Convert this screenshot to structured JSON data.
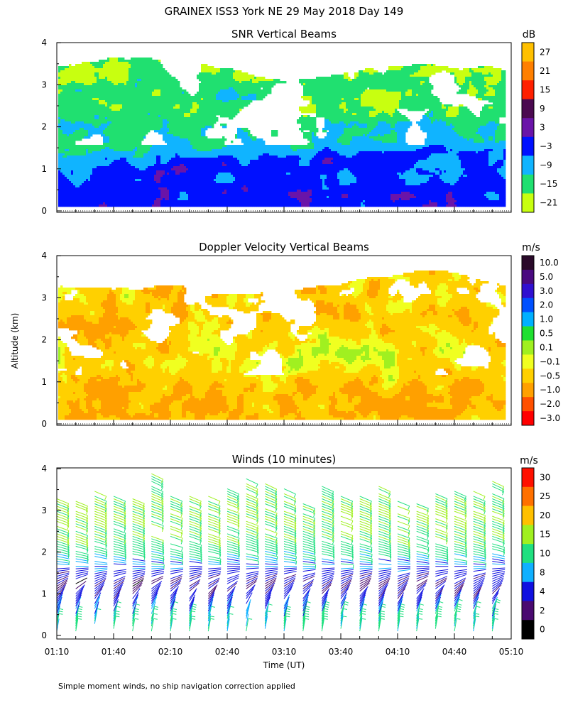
{
  "title": "GRAINEX ISS3 York NE  29 May 2018 Day 149",
  "ylabel": "Altitude (km)",
  "xlabel": "Time (UT)",
  "footnote": "Simple moment winds, no ship navigation correction applied",
  "x_ticks": [
    "01:10",
    "01:40",
    "02:10",
    "02:40",
    "03:10",
    "03:40",
    "04:10",
    "04:40",
    "05:10"
  ],
  "y_ticks": [
    "0",
    "1",
    "2",
    "3",
    "4"
  ],
  "chart_data": [
    {
      "type": "heatmap",
      "title": "SNR Vertical Beams",
      "unit": "dB",
      "x_range": [
        "01:10",
        "05:10"
      ],
      "ylim": [
        0,
        4
      ],
      "colorbar": {
        "labels": [
          "27",
          "21",
          "15",
          "9",
          "3",
          "−3",
          "−9",
          "−15",
          "−21"
        ],
        "colors": [
          "#ffc000",
          "#ff7f00",
          "#ff2000",
          "#4b0a50",
          "#6a14a8",
          "#0010ff",
          "#10b4ff",
          "#20e070",
          "#c8ff10"
        ]
      },
      "profile": [
        {
          "alt_km": 0.5,
          "snr_db": -3
        },
        {
          "alt_km": 1.0,
          "snr_db": -6
        },
        {
          "alt_km": 1.5,
          "snr_db": -12
        },
        {
          "alt_km": 2.0,
          "snr_db": -14
        },
        {
          "alt_km": 2.5,
          "snr_db": -17
        },
        {
          "alt_km": 3.0,
          "snr_db": -15
        },
        {
          "alt_km": 3.5,
          "snr_db": -19
        }
      ]
    },
    {
      "type": "heatmap",
      "title": "Doppler Velocity Vertical Beams",
      "unit": "m/s",
      "x_range": [
        "01:10",
        "05:10"
      ],
      "ylim": [
        0,
        4
      ],
      "colorbar": {
        "labels": [
          "10.0",
          "5.0",
          "3.0",
          "2.0",
          "1.0",
          "0.5",
          "0.1",
          "−0.1",
          "−0.5",
          "−1.0",
          "−2.0",
          "−3.0"
        ],
        "colors": [
          "#2a0a2a",
          "#4a0a80",
          "#3010d0",
          "#0050ff",
          "#00b0ff",
          "#20e030",
          "#a0f020",
          "#f0ff20",
          "#ffd000",
          "#ffa000",
          "#ff5000",
          "#ff0000"
        ]
      },
      "profile": [
        {
          "alt_km": 0.5,
          "velocity_ms": -0.7
        },
        {
          "alt_km": 1.0,
          "velocity_ms": -0.6
        },
        {
          "alt_km": 1.5,
          "velocity_ms": -0.3
        },
        {
          "alt_km": 2.0,
          "velocity_ms": -0.4
        },
        {
          "alt_km": 2.5,
          "velocity_ms": -0.6
        },
        {
          "alt_km": 3.0,
          "velocity_ms": -0.5
        },
        {
          "alt_km": 3.5,
          "velocity_ms": -0.6
        }
      ]
    },
    {
      "type": "scatter",
      "title": "Winds (10 minutes)",
      "unit": "m/s",
      "x_range": [
        "01:10",
        "05:10"
      ],
      "ylim": [
        0,
        4
      ],
      "colorbar": {
        "labels": [
          "30",
          "25",
          "20",
          "15",
          "10",
          "8",
          "4",
          "2",
          "0"
        ],
        "colors": [
          "#ff1000",
          "#ff7000",
          "#ffc000",
          "#a0f020",
          "#20e080",
          "#10b0ff",
          "#1010e0",
          "#4a0a70",
          "#000000"
        ]
      },
      "times": [
        "01:10",
        "01:20",
        "01:30",
        "01:40",
        "01:50",
        "02:00",
        "02:10",
        "02:20",
        "02:30",
        "02:40",
        "02:50",
        "03:00",
        "03:10",
        "03:20",
        "03:30",
        "03:40",
        "03:50",
        "04:00",
        "04:10",
        "04:20",
        "04:30",
        "04:40",
        "04:50",
        "05:00"
      ],
      "profile": [
        {
          "alt_km": 0.3,
          "speed_ms": 11,
          "dir_deg": 190
        },
        {
          "alt_km": 0.8,
          "speed_ms": 6,
          "dir_deg": 210
        },
        {
          "alt_km": 1.2,
          "speed_ms": 3,
          "dir_deg": 240
        },
        {
          "alt_km": 1.8,
          "speed_ms": 9,
          "dir_deg": 280
        },
        {
          "alt_km": 2.4,
          "speed_ms": 15,
          "dir_deg": 290
        },
        {
          "alt_km": 3.0,
          "speed_ms": 16,
          "dir_deg": 290
        },
        {
          "alt_km": 3.6,
          "speed_ms": 14,
          "dir_deg": 295
        }
      ]
    }
  ]
}
